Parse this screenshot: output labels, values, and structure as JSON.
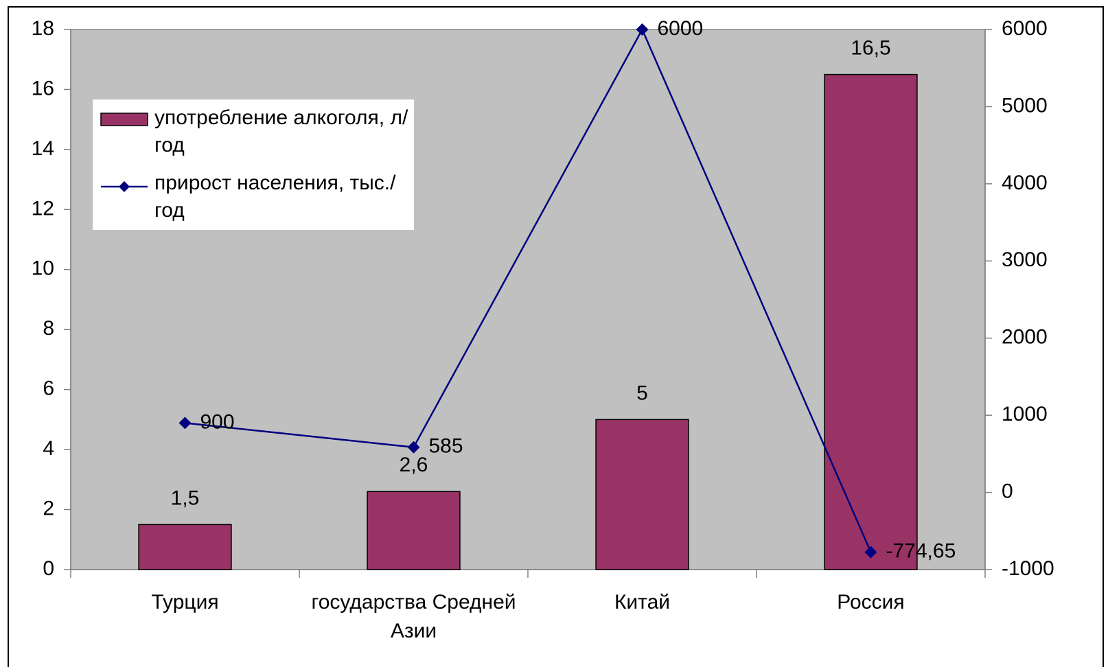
{
  "chart_data": {
    "type": "bar+line",
    "categories": [
      "Турция",
      "государства Средней Азии",
      "Китай",
      "Россия"
    ],
    "series": [
      {
        "name": "употребление алкоголя, л/год",
        "type": "bar",
        "color": "#993366",
        "values": [
          1.5,
          2.6,
          5,
          16.5
        ],
        "value_labels": [
          "1,5",
          "2,6",
          "5",
          "16,5"
        ]
      },
      {
        "name": "прирост населения, тыс./год",
        "type": "line",
        "axis": "y2",
        "color": "#000080",
        "values": [
          900,
          585,
          6000,
          -774.65
        ],
        "value_labels": [
          "900",
          "585",
          "6000",
          "-774,65"
        ]
      }
    ],
    "ylim": [
      0,
      18
    ],
    "yticks": [
      0,
      2,
      4,
      6,
      8,
      10,
      12,
      14,
      16,
      18
    ],
    "y2lim": [
      -1000,
      6000
    ],
    "y2ticks": [
      -1000,
      0,
      1000,
      2000,
      3000,
      4000,
      5000,
      6000
    ],
    "plot_background": "#c0c0c0",
    "legend": "upper left"
  }
}
